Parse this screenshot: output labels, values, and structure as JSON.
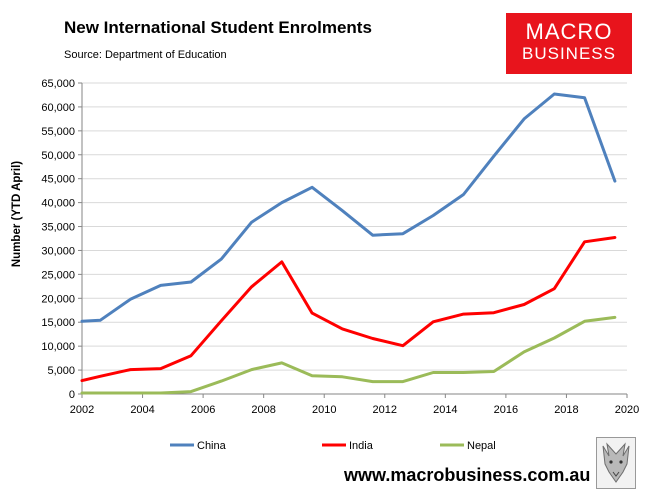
{
  "header": {
    "title": "New International Student Enrolments",
    "source": "Source: Department of Education"
  },
  "logo": {
    "line1": "MACRO",
    "line2": "BUSINESS"
  },
  "footer": {
    "website": "www.macrobusiness.com.au"
  },
  "chart_data": {
    "type": "line",
    "title": "New International Student Enrolments",
    "xlabel": "",
    "ylabel": "Number (YTD April)",
    "xlim": [
      2002,
      2020
    ],
    "ylim": [
      0,
      65000
    ],
    "grid": true,
    "legend_position": "bottom",
    "x_ticks": [
      "2002",
      "2004",
      "2006",
      "2008",
      "2010",
      "2012",
      "2014",
      "2016",
      "2018",
      "2020"
    ],
    "y_ticks": [
      "0",
      "5,000",
      "10,000",
      "15,000",
      "20,000",
      "25,000",
      "30,000",
      "35,000",
      "40,000",
      "45,000",
      "50,000",
      "55,000",
      "60,000",
      "65,000"
    ],
    "y_tick_values": [
      0,
      5000,
      10000,
      15000,
      20000,
      25000,
      30000,
      35000,
      40000,
      45000,
      50000,
      55000,
      60000,
      65000
    ],
    "x_tick_values": [
      2002,
      2004,
      2006,
      2008,
      2010,
      2012,
      2014,
      2016,
      2018,
      2020
    ],
    "x": [
      2002.0,
      2002.6,
      2003.6,
      2004.6,
      2005.6,
      2006.6,
      2007.6,
      2008.6,
      2009.6,
      2010.6,
      2011.6,
      2012.6,
      2013.6,
      2014.6,
      2015.6,
      2016.6,
      2017.6,
      2018.6,
      2019.6
    ],
    "series": [
      {
        "name": "China",
        "color": "#4f81bd",
        "values": [
          15200,
          15400,
          19800,
          22700,
          23400,
          28200,
          35900,
          40000,
          43200,
          38300,
          33200,
          33500,
          37300,
          41700,
          49700,
          57500,
          62700,
          61900,
          44500
        ]
      },
      {
        "name": "India",
        "color": "#ff0000",
        "values": [
          2800,
          3700,
          5100,
          5300,
          8000,
          15300,
          22400,
          27600,
          16900,
          13600,
          11600,
          10100,
          15100,
          16700,
          17000,
          18700,
          22000,
          31800,
          32700
        ]
      },
      {
        "name": "Nepal",
        "color": "#9bbb59",
        "values": [
          200,
          200,
          200,
          200,
          500,
          2700,
          5100,
          6500,
          3800,
          3600,
          2600,
          2600,
          4500,
          4500,
          4700,
          8800,
          11700,
          15200,
          16000
        ]
      }
    ]
  }
}
